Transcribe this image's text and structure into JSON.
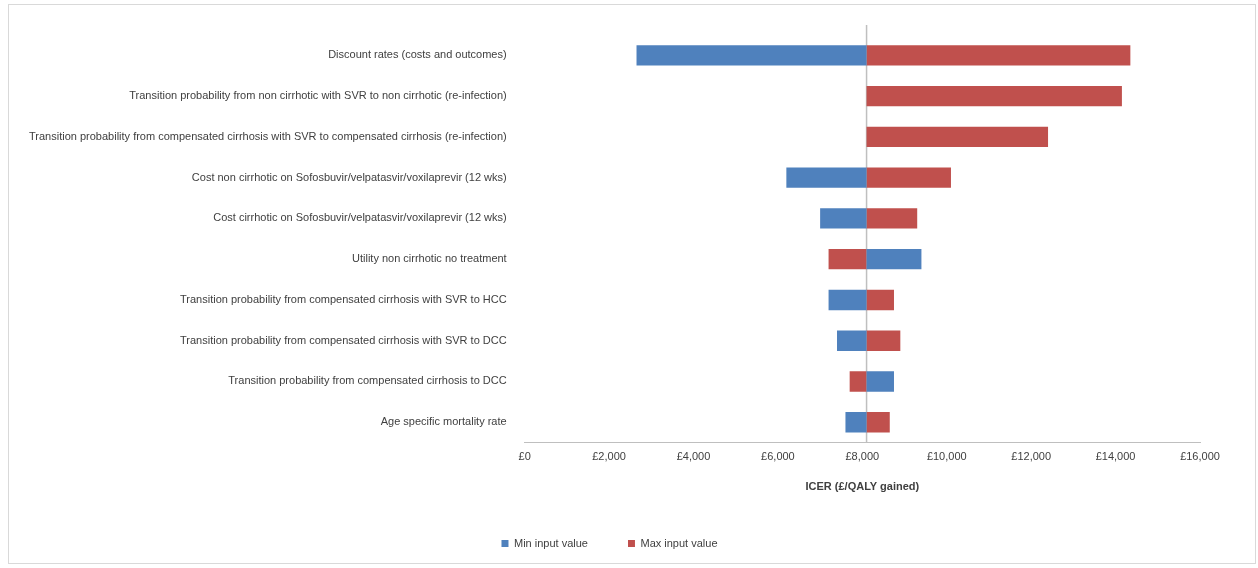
{
  "chart_data": {
    "type": "bar",
    "orientation": "horizontal",
    "xlabel": "ICER (£/QALY gained)",
    "categories": [
      "Discount rates (costs and outcomes)",
      "Transition probability from non cirrhotic with SVR to non cirrhotic (re-infection)",
      "Transition probability from compensated cirrhosis with SVR to compensated cirrhosis (re-infection)",
      "Cost non cirrhotic on Sofosbuvir/velpatasvir/voxilaprevir (12 wks)",
      "Cost cirrhotic on Sofosbuvir/velpatasvir/voxilaprevir (12 wks)",
      "Utility non cirrhotic no treatment",
      "Transition probability from compensated cirrhosis with SVR to HCC",
      "Transition probability from compensated cirrhosis with SVR to DCC",
      "Transition probability from compensated cirrhosis to DCC",
      "Age specific mortality rate"
    ],
    "series": [
      {
        "name": "Min input value",
        "color": "#4f81bd",
        "base": [
          2650,
          null,
          null,
          6200,
          7000,
          8100,
          7200,
          7400,
          8100,
          7600
        ],
        "values": [
          5450,
          null,
          null,
          1900,
          1100,
          1300,
          900,
          700,
          650,
          500
        ]
      },
      {
        "name": "Max input value",
        "color": "#c0504d",
        "base": [
          8100,
          8100,
          8100,
          8100,
          8100,
          7200,
          8100,
          8100,
          7700,
          8100
        ],
        "values": [
          6250,
          6050,
          4300,
          2000,
          1200,
          900,
          650,
          800,
          400,
          550
        ]
      }
    ],
    "xlim": [
      0,
      16000
    ],
    "xticks": [
      {
        "value": 0,
        "label": "£0"
      },
      {
        "value": 2000,
        "label": "£2,000"
      },
      {
        "value": 4000,
        "label": "£4,000"
      },
      {
        "value": 6000,
        "label": "£6,000"
      },
      {
        "value": 8000,
        "label": "£8,000"
      },
      {
        "value": 10000,
        "label": "£10,000"
      },
      {
        "value": 12000,
        "label": "£12,000"
      },
      {
        "value": 14000,
        "label": "£14,000"
      },
      {
        "value": 16000,
        "label": "£16,000"
      }
    ],
    "ref_lines": [
      {
        "axis": "x",
        "value": 8100,
        "color": "#bfbfbf"
      }
    ],
    "grid": false,
    "legend": "bottom"
  }
}
